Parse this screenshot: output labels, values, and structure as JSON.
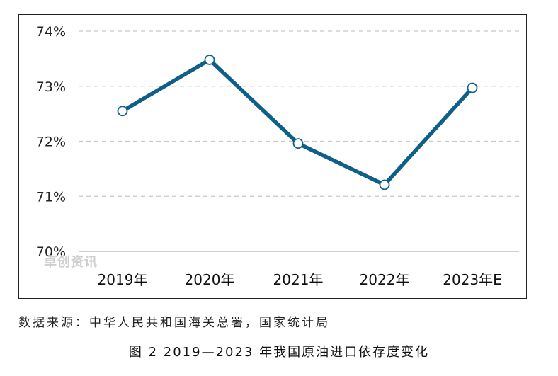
{
  "chart_data": {
    "type": "line",
    "categories": [
      "2019年",
      "2020年",
      "2021年",
      "2022年",
      "2023年E"
    ],
    "series": [
      {
        "values": [
          72.55,
          73.48,
          71.96,
          71.21,
          72.97
        ]
      }
    ],
    "yticks": [
      "70%",
      "71%",
      "72%",
      "73%",
      "74%"
    ],
    "ylim": [
      70,
      74
    ],
    "grid": "dashed horizontal",
    "line_color": "#0f6088"
  },
  "watermark": "卓创资讯",
  "source_text": "数据来源：中华人民共和国海关总署，国家统计局",
  "caption": "图 2  2019—2023 年我国原油进口依存度变化"
}
